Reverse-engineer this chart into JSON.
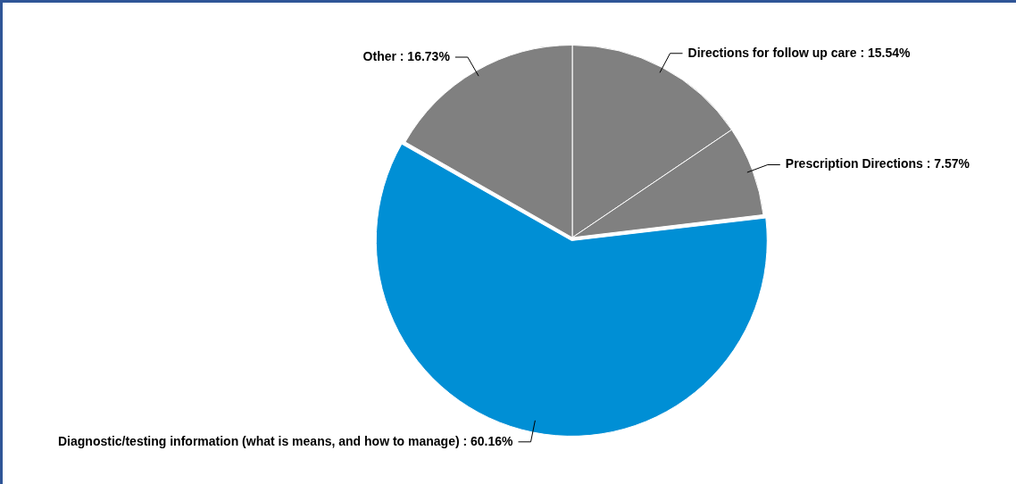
{
  "chart_data": {
    "type": "pie",
    "categories": [
      "Directions for follow up care",
      "Prescription Directions",
      "Diagnostic/testing information (what is means, and how to manage)",
      "Other"
    ],
    "values": [
      15.54,
      7.57,
      60.16,
      16.73
    ],
    "colors": [
      "#808080",
      "#808080",
      "#008fd5",
      "#808080"
    ],
    "value_labels": [
      "15.54%",
      "7.57%",
      "60.16%",
      "16.73%"
    ],
    "legend": false
  }
}
